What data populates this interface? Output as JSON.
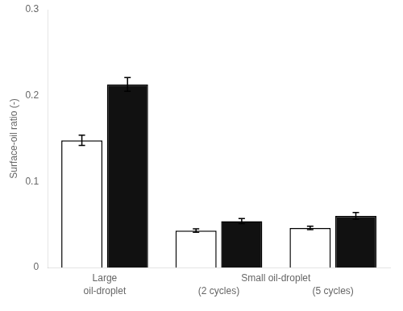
{
  "chart_data": {
    "type": "bar",
    "ylabel": "Surface-oil ratio (-)",
    "categories": [
      "Large\noil-droplet",
      "(2 cycles)",
      "(5 cycles)"
    ],
    "series": [
      {
        "color": "#ffffff",
        "values": [
          0.148,
          0.043,
          0.046
        ],
        "errors": [
          0.006,
          0.002,
          0.002
        ]
      },
      {
        "color": "#111111",
        "values": [
          0.213,
          0.054,
          0.06
        ],
        "errors": [
          0.008,
          0.003,
          0.004
        ]
      }
    ],
    "ylim": [
      0,
      0.3
    ],
    "yticks": [
      0,
      0.1,
      0.2,
      0.3
    ],
    "grid": false,
    "annotations": [
      {
        "text": "Small oil-droplet",
        "between": [
          "(2 cycles)",
          "(5 cycles)"
        ]
      }
    ]
  }
}
